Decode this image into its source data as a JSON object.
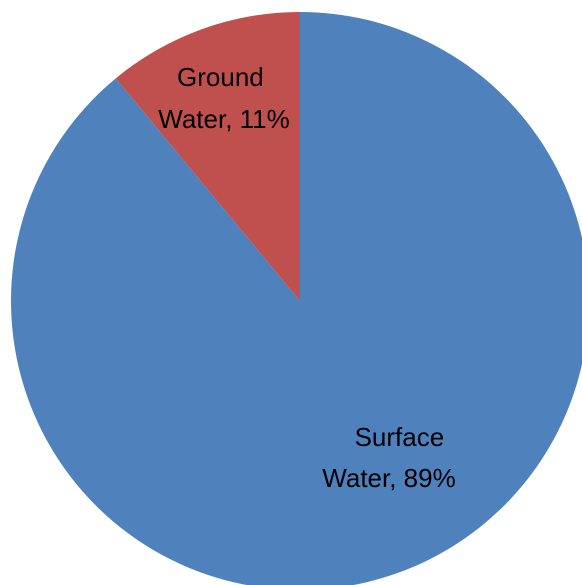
{
  "chart_data": {
    "type": "pie",
    "slices": [
      {
        "label_line1": "Surface",
        "label_line2": "Water, 89%",
        "value": 89,
        "color": "#4f81bd"
      },
      {
        "label_line1": "Ground",
        "label_line2": "Water, 11%",
        "value": 11,
        "color": "#c0504d"
      }
    ],
    "start": "12 o'clock",
    "direction": "clockwise",
    "legend": "none"
  }
}
